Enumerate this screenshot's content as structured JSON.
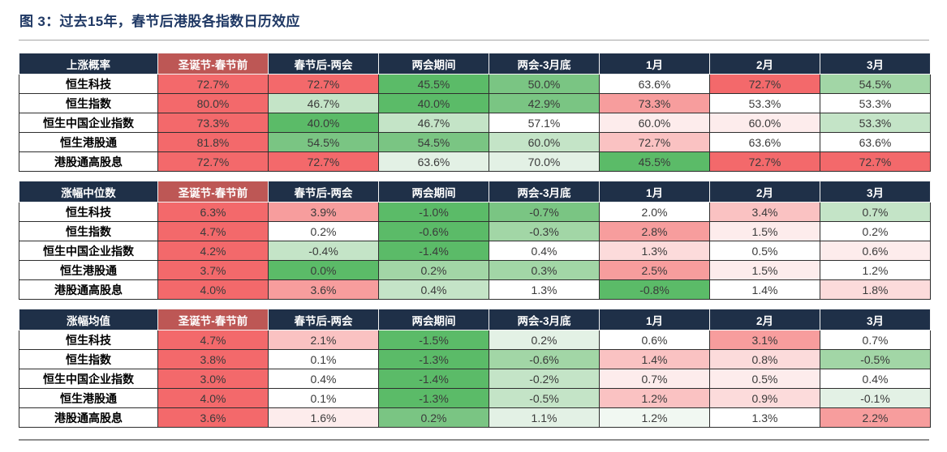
{
  "title": "图 3：过去15年，春节后港股各指数日历效应",
  "columns": [
    "圣诞节-春节前",
    "春节后-两会",
    "两会期间",
    "两会-3月底",
    "1月",
    "2月",
    "3月"
  ],
  "row_labels": [
    "恒生科技",
    "恒生指数",
    "恒生中国企业指数",
    "恒生港股通",
    "港股通高股息"
  ],
  "palette": {
    "R5": "#f3696b",
    "R4": "#f79d9d",
    "R3": "#fac2c2",
    "R2": "#fcdbdb",
    "R1": "#fdecec",
    "W": "#ffffff",
    "G0": "#f1f8f2",
    "G1": "#e3f1e5",
    "G2": "#c4e4c7",
    "G3": "#a2d6a6",
    "G4": "#7ac583",
    "G5": "#5bbb68",
    "header_navy": "#1f3048",
    "header_red": "#bd5755",
    "title_navy": "#1f3864"
  },
  "tables": [
    {
      "name": "上涨概率",
      "rows": [
        {
          "label": "恒生科技",
          "cells": [
            {
              "v": "72.7%",
              "c": "R5"
            },
            {
              "v": "72.7%",
              "c": "R5"
            },
            {
              "v": "45.5%",
              "c": "G5"
            },
            {
              "v": "50.0%",
              "c": "G4"
            },
            {
              "v": "63.6%",
              "c": "W"
            },
            {
              "v": "72.7%",
              "c": "R5"
            },
            {
              "v": "54.5%",
              "c": "G3"
            }
          ]
        },
        {
          "label": "恒生指数",
          "cells": [
            {
              "v": "80.0%",
              "c": "R5"
            },
            {
              "v": "46.7%",
              "c": "G2"
            },
            {
              "v": "40.0%",
              "c": "G5"
            },
            {
              "v": "42.9%",
              "c": "G4"
            },
            {
              "v": "73.3%",
              "c": "R4"
            },
            {
              "v": "53.3%",
              "c": "W"
            },
            {
              "v": "53.3%",
              "c": "W"
            }
          ]
        },
        {
          "label": "恒生中国企业指数",
          "cells": [
            {
              "v": "73.3%",
              "c": "R5"
            },
            {
              "v": "40.0%",
              "c": "G5"
            },
            {
              "v": "46.7%",
              "c": "G2"
            },
            {
              "v": "57.1%",
              "c": "W"
            },
            {
              "v": "60.0%",
              "c": "R1"
            },
            {
              "v": "60.0%",
              "c": "R1"
            },
            {
              "v": "53.3%",
              "c": "G2"
            }
          ]
        },
        {
          "label": "恒生港股通",
          "cells": [
            {
              "v": "81.8%",
              "c": "R5"
            },
            {
              "v": "54.5%",
              "c": "G4"
            },
            {
              "v": "54.5%",
              "c": "G4"
            },
            {
              "v": "60.0%",
              "c": "G2"
            },
            {
              "v": "72.7%",
              "c": "R3"
            },
            {
              "v": "63.6%",
              "c": "W"
            },
            {
              "v": "63.6%",
              "c": "W"
            }
          ]
        },
        {
          "label": "港股通高股息",
          "cells": [
            {
              "v": "72.7%",
              "c": "R5"
            },
            {
              "v": "72.7%",
              "c": "R5"
            },
            {
              "v": "63.6%",
              "c": "G1"
            },
            {
              "v": "70.0%",
              "c": "G1"
            },
            {
              "v": "45.5%",
              "c": "G5"
            },
            {
              "v": "72.7%",
              "c": "R5"
            },
            {
              "v": "72.7%",
              "c": "R5"
            }
          ]
        }
      ]
    },
    {
      "name": "涨幅中位数",
      "rows": [
        {
          "label": "恒生科技",
          "cells": [
            {
              "v": "6.3%",
              "c": "R5"
            },
            {
              "v": "3.9%",
              "c": "R4"
            },
            {
              "v": "-1.0%",
              "c": "G5"
            },
            {
              "v": "-0.7%",
              "c": "G4"
            },
            {
              "v": "2.0%",
              "c": "W"
            },
            {
              "v": "3.4%",
              "c": "R3"
            },
            {
              "v": "0.7%",
              "c": "G2"
            }
          ]
        },
        {
          "label": "恒生指数",
          "cells": [
            {
              "v": "4.7%",
              "c": "R5"
            },
            {
              "v": "0.2%",
              "c": "W"
            },
            {
              "v": "-0.6%",
              "c": "G5"
            },
            {
              "v": "-0.3%",
              "c": "G3"
            },
            {
              "v": "2.8%",
              "c": "R4"
            },
            {
              "v": "1.5%",
              "c": "R1"
            },
            {
              "v": "0.2%",
              "c": "W"
            }
          ]
        },
        {
          "label": "恒生中国企业指数",
          "cells": [
            {
              "v": "4.2%",
              "c": "R5"
            },
            {
              "v": "-0.4%",
              "c": "G2"
            },
            {
              "v": "-1.4%",
              "c": "G5"
            },
            {
              "v": "0.4%",
              "c": "W"
            },
            {
              "v": "1.3%",
              "c": "R2"
            },
            {
              "v": "0.5%",
              "c": "W"
            },
            {
              "v": "0.6%",
              "c": "R1"
            }
          ]
        },
        {
          "label": "恒生港股通",
          "cells": [
            {
              "v": "3.7%",
              "c": "R5"
            },
            {
              "v": "0.0%",
              "c": "G5"
            },
            {
              "v": "0.2%",
              "c": "G3"
            },
            {
              "v": "0.3%",
              "c": "G3"
            },
            {
              "v": "2.5%",
              "c": "R4"
            },
            {
              "v": "1.5%",
              "c": "R1"
            },
            {
              "v": "1.2%",
              "c": "W"
            }
          ]
        },
        {
          "label": "港股通高股息",
          "cells": [
            {
              "v": "4.0%",
              "c": "R5"
            },
            {
              "v": "3.6%",
              "c": "R4"
            },
            {
              "v": "0.4%",
              "c": "G2"
            },
            {
              "v": "1.3%",
              "c": "W"
            },
            {
              "v": "-0.8%",
              "c": "G5"
            },
            {
              "v": "1.4%",
              "c": "W"
            },
            {
              "v": "1.8%",
              "c": "R2"
            }
          ]
        }
      ]
    },
    {
      "name": "涨幅均值",
      "rows": [
        {
          "label": "恒生科技",
          "cells": [
            {
              "v": "4.7%",
              "c": "R5"
            },
            {
              "v": "2.1%",
              "c": "R3"
            },
            {
              "v": "-1.5%",
              "c": "G5"
            },
            {
              "v": "0.2%",
              "c": "G1"
            },
            {
              "v": "0.6%",
              "c": "W"
            },
            {
              "v": "3.1%",
              "c": "R4"
            },
            {
              "v": "0.7%",
              "c": "W"
            }
          ]
        },
        {
          "label": "恒生指数",
          "cells": [
            {
              "v": "3.8%",
              "c": "R5"
            },
            {
              "v": "0.1%",
              "c": "W"
            },
            {
              "v": "-1.3%",
              "c": "G5"
            },
            {
              "v": "-0.6%",
              "c": "G3"
            },
            {
              "v": "1.4%",
              "c": "R3"
            },
            {
              "v": "0.8%",
              "c": "R2"
            },
            {
              "v": "-0.5%",
              "c": "G3"
            }
          ]
        },
        {
          "label": "恒生中国企业指数",
          "cells": [
            {
              "v": "3.0%",
              "c": "R5"
            },
            {
              "v": "0.4%",
              "c": "W"
            },
            {
              "v": "-1.4%",
              "c": "G5"
            },
            {
              "v": "-0.2%",
              "c": "G2"
            },
            {
              "v": "0.7%",
              "c": "R1"
            },
            {
              "v": "0.5%",
              "c": "R1"
            },
            {
              "v": "0.4%",
              "c": "W"
            }
          ]
        },
        {
          "label": "恒生港股通",
          "cells": [
            {
              "v": "4.0%",
              "c": "R5"
            },
            {
              "v": "0.1%",
              "c": "W"
            },
            {
              "v": "-1.3%",
              "c": "G5"
            },
            {
              "v": "-0.5%",
              "c": "G2"
            },
            {
              "v": "1.2%",
              "c": "R3"
            },
            {
              "v": "0.9%",
              "c": "R2"
            },
            {
              "v": "-0.1%",
              "c": "G1"
            }
          ]
        },
        {
          "label": "港股通高股息",
          "cells": [
            {
              "v": "3.6%",
              "c": "R5"
            },
            {
              "v": "1.6%",
              "c": "R1"
            },
            {
              "v": "0.2%",
              "c": "G4"
            },
            {
              "v": "1.1%",
              "c": "G1"
            },
            {
              "v": "1.2%",
              "c": "G0"
            },
            {
              "v": "1.3%",
              "c": "W"
            },
            {
              "v": "2.2%",
              "c": "R4"
            }
          ]
        }
      ]
    }
  ],
  "chart_data": [
    {
      "type": "heatmap",
      "title": "上涨概率",
      "rows": [
        "恒生科技",
        "恒生指数",
        "恒生中国企业指数",
        "恒生港股通",
        "港股通高股息"
      ],
      "columns": [
        "圣诞节-春节前",
        "春节后-两会",
        "两会期间",
        "两会-3月底",
        "1月",
        "2月",
        "3月"
      ],
      "values_pct": [
        [
          72.7,
          72.7,
          45.5,
          50.0,
          63.6,
          72.7,
          54.5
        ],
        [
          80.0,
          46.7,
          40.0,
          42.9,
          73.3,
          53.3,
          53.3
        ],
        [
          73.3,
          40.0,
          46.7,
          57.1,
          60.0,
          60.0,
          53.3
        ],
        [
          81.8,
          54.5,
          54.5,
          60.0,
          72.7,
          63.6,
          63.6
        ],
        [
          72.7,
          72.7,
          63.6,
          70.0,
          45.5,
          72.7,
          72.7
        ]
      ],
      "legend_position": "none",
      "color_scale": "red=high, green=low"
    },
    {
      "type": "heatmap",
      "title": "涨幅中位数",
      "rows": [
        "恒生科技",
        "恒生指数",
        "恒生中国企业指数",
        "恒生港股通",
        "港股通高股息"
      ],
      "columns": [
        "圣诞节-春节前",
        "春节后-两会",
        "两会期间",
        "两会-3月底",
        "1月",
        "2月",
        "3月"
      ],
      "values_pct": [
        [
          6.3,
          3.9,
          -1.0,
          -0.7,
          2.0,
          3.4,
          0.7
        ],
        [
          4.7,
          0.2,
          -0.6,
          -0.3,
          2.8,
          1.5,
          0.2
        ],
        [
          4.2,
          -0.4,
          -1.4,
          0.4,
          1.3,
          0.5,
          0.6
        ],
        [
          3.7,
          0.0,
          0.2,
          0.3,
          2.5,
          1.5,
          1.2
        ],
        [
          4.0,
          3.6,
          0.4,
          1.3,
          -0.8,
          1.4,
          1.8
        ]
      ],
      "legend_position": "none",
      "color_scale": "red=high, green=low"
    },
    {
      "type": "heatmap",
      "title": "涨幅均值",
      "rows": [
        "恒生科技",
        "恒生指数",
        "恒生中国企业指数",
        "恒生港股通",
        "港股通高股息"
      ],
      "columns": [
        "圣诞节-春节前",
        "春节后-两会",
        "两会期间",
        "两会-3月底",
        "1月",
        "2月",
        "3月"
      ],
      "values_pct": [
        [
          4.7,
          2.1,
          -1.5,
          0.2,
          0.6,
          3.1,
          0.7
        ],
        [
          3.8,
          0.1,
          -1.3,
          -0.6,
          1.4,
          0.8,
          -0.5
        ],
        [
          3.0,
          0.4,
          -1.4,
          -0.2,
          0.7,
          0.5,
          0.4
        ],
        [
          4.0,
          0.1,
          -1.3,
          -0.5,
          1.2,
          0.9,
          -0.1
        ],
        [
          3.6,
          1.6,
          0.2,
          1.1,
          1.2,
          1.3,
          2.2
        ]
      ],
      "legend_position": "none",
      "color_scale": "red=high, green=low"
    }
  ]
}
